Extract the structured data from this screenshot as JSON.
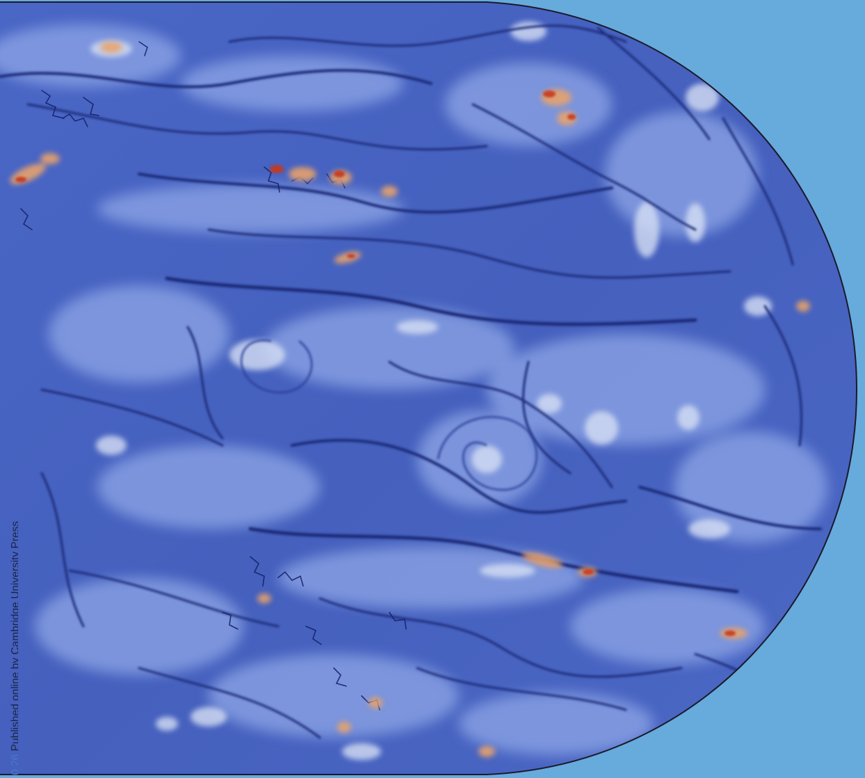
{
  "colors": {
    "background": "#67aadc",
    "flow_base": "#4b66c4",
    "flow_dark": "#1a2a75",
    "flow_light": "#b9cbee",
    "hot_orange": "#e8853a",
    "hot_red": "#c83a1c",
    "outline": "#1a1a2a",
    "credit_text": "#1a2548",
    "credit_ref": "#4a78c8"
  },
  "image": {
    "subject": "turbulent flow field visualization",
    "shape": "half-disc with straight left edge and rounded right edge"
  },
  "credit": {
    "reference": "0.26",
    "text": "Published online by Cambridge University Press"
  }
}
